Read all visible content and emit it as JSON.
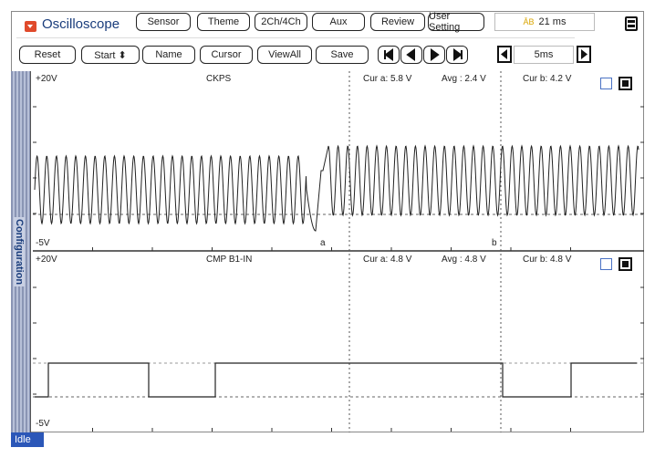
{
  "app": {
    "title": "Oscilloscope",
    "status": "Idle",
    "sidebar_label": "Configuration"
  },
  "toolbar1": [
    {
      "id": "sensor",
      "label": "Sensor"
    },
    {
      "id": "theme",
      "label": "Theme"
    },
    {
      "id": "channels",
      "label": "2Ch/4Ch"
    },
    {
      "id": "aux",
      "label": "Aux"
    },
    {
      "id": "review",
      "label": "Review"
    },
    {
      "id": "user-setting",
      "label": "User Setting"
    }
  ],
  "toolbar2": [
    {
      "id": "reset",
      "label": "Reset"
    },
    {
      "id": "start",
      "label": "Start ⬍"
    },
    {
      "id": "name",
      "label": "Name"
    },
    {
      "id": "cursor",
      "label": "Cursor"
    },
    {
      "id": "viewall",
      "label": "ViewAll"
    },
    {
      "id": "save",
      "label": "Save"
    }
  ],
  "cursor_delta": {
    "icon": "ab-delta-icon",
    "value": "21 ms"
  },
  "timebase": "5ms",
  "nav_icons": [
    "skip-first-icon",
    "step-back-icon",
    "step-forward-icon",
    "skip-last-icon"
  ],
  "channels": [
    {
      "name": "CKPS",
      "top": "+20V",
      "bottom": "-5V",
      "cur_a": "Cur a: 5.8 V",
      "avg": "Avg  : 2.4 V",
      "cur_b": "Cur b: 4.2 V"
    },
    {
      "name": "CMP B1-IN",
      "top": "+20V",
      "bottom": "-5V",
      "cur_a": "Cur a: 4.8 V",
      "avg": "Avg  : 4.8 V",
      "cur_b": "Cur b: 4.8 V"
    }
  ],
  "cursors": {
    "a": "a",
    "b": "b"
  },
  "colors": {
    "status_bg": "#2b57b8",
    "title": "#1a3d7c",
    "logo": "#e04a2b"
  }
}
